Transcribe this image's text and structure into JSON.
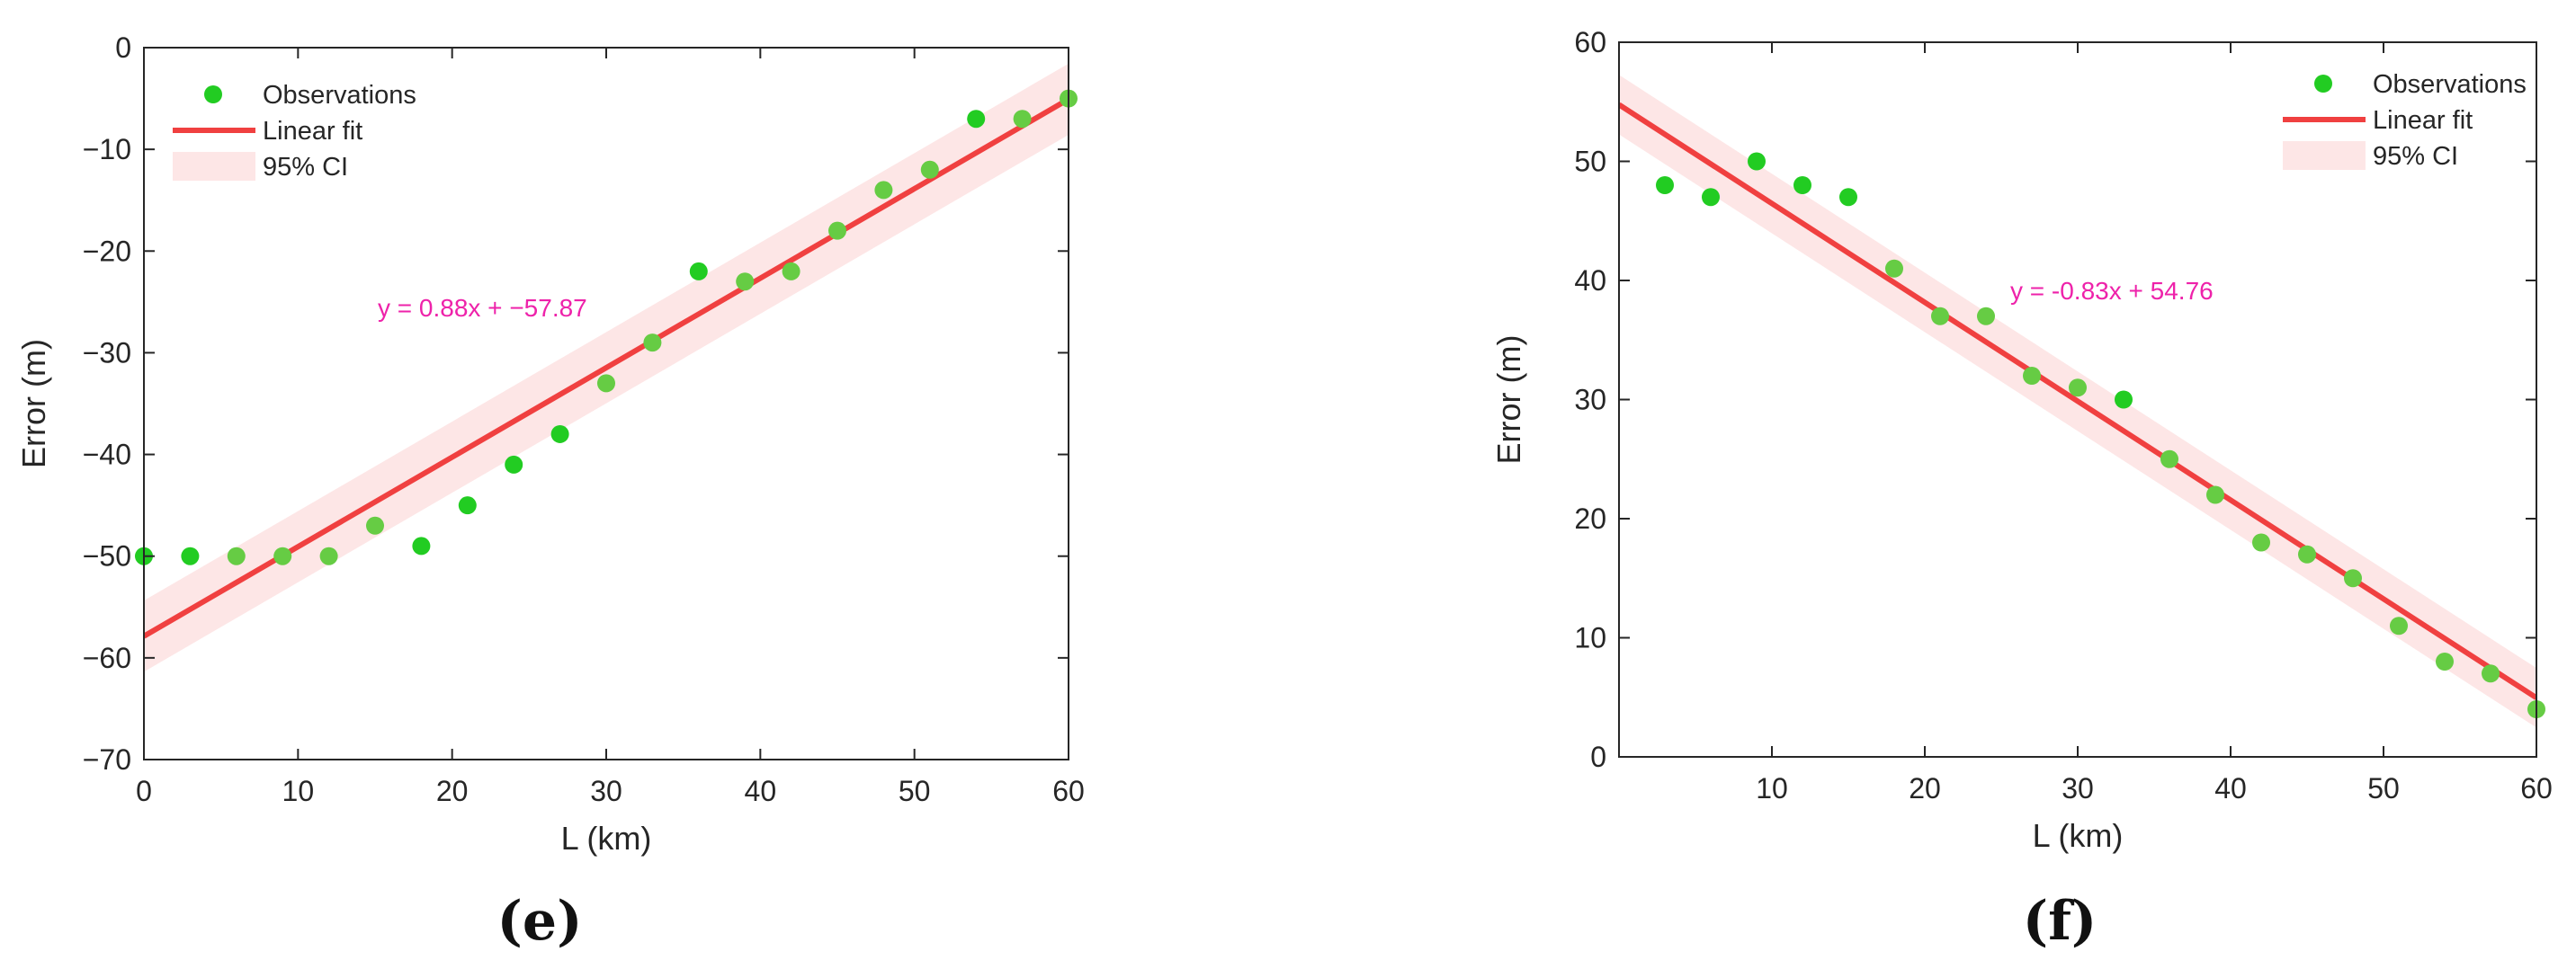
{
  "chart_data": [
    {
      "type": "scatter",
      "panel_label": "(e)",
      "xlabel": "L (km)",
      "ylabel": "Error (m)",
      "xlim": [
        0,
        60
      ],
      "ylim": [
        -70,
        0
      ],
      "xticks": [
        0,
        10,
        20,
        30,
        40,
        50,
        60
      ],
      "yticks": [
        0,
        -10,
        -20,
        -30,
        -40,
        -50,
        -60,
        -70
      ],
      "ytick_labels": [
        "0",
        "−10",
        "−20",
        "−30",
        "−40",
        "−50",
        "−60",
        "−70"
      ],
      "grid": false,
      "legend_position": "top-left",
      "legend": [
        "Observations",
        "Linear fit",
        "95% CI"
      ],
      "equation": "y = 0.88x + −57.87",
      "fit": {
        "slope": 0.88,
        "intercept": -57.87
      },
      "ci_halfwidth": 3.5,
      "x": [
        0,
        3,
        6,
        9,
        12,
        15,
        18,
        21,
        24,
        27,
        30,
        33,
        36,
        39,
        42,
        45,
        48,
        51,
        54,
        57,
        60
      ],
      "y": [
        -50,
        -50,
        -50,
        -50,
        -50,
        -47,
        -49,
        -45,
        -41,
        -38,
        -33,
        -29,
        -22,
        -23,
        -22,
        -18,
        -14,
        -12,
        -7,
        -7,
        -5
      ]
    },
    {
      "type": "scatter",
      "panel_label": "(f)",
      "xlabel": "L (km)",
      "ylabel": "Error (m)",
      "xlim": [
        0,
        60
      ],
      "ylim": [
        0,
        60
      ],
      "xticks": [
        10,
        20,
        30,
        40,
        50,
        60
      ],
      "yticks": [
        0,
        10,
        20,
        30,
        40,
        50,
        60
      ],
      "grid": false,
      "legend_position": "top-right",
      "legend": [
        "Observations",
        "Linear fit",
        "95% CI"
      ],
      "equation": "y = -0.83x + 54.76",
      "fit": {
        "slope": -0.83,
        "intercept": 54.76
      },
      "ci_halfwidth": 2.5,
      "x": [
        3,
        6,
        9,
        12,
        15,
        18,
        21,
        24,
        27,
        30,
        33,
        36,
        39,
        42,
        45,
        48,
        51,
        54,
        57,
        60
      ],
      "y": [
        48,
        47,
        50,
        48,
        47,
        41,
        37,
        37,
        32,
        31,
        30,
        25,
        22,
        18,
        17,
        15,
        11,
        8,
        7,
        4
      ]
    }
  ],
  "colors": {
    "point": "#22cc22",
    "point_light": "#66cc44",
    "fit": "#f04040",
    "ci": "#fde6e6",
    "equation": "#ee22aa",
    "axis": "#262626"
  }
}
